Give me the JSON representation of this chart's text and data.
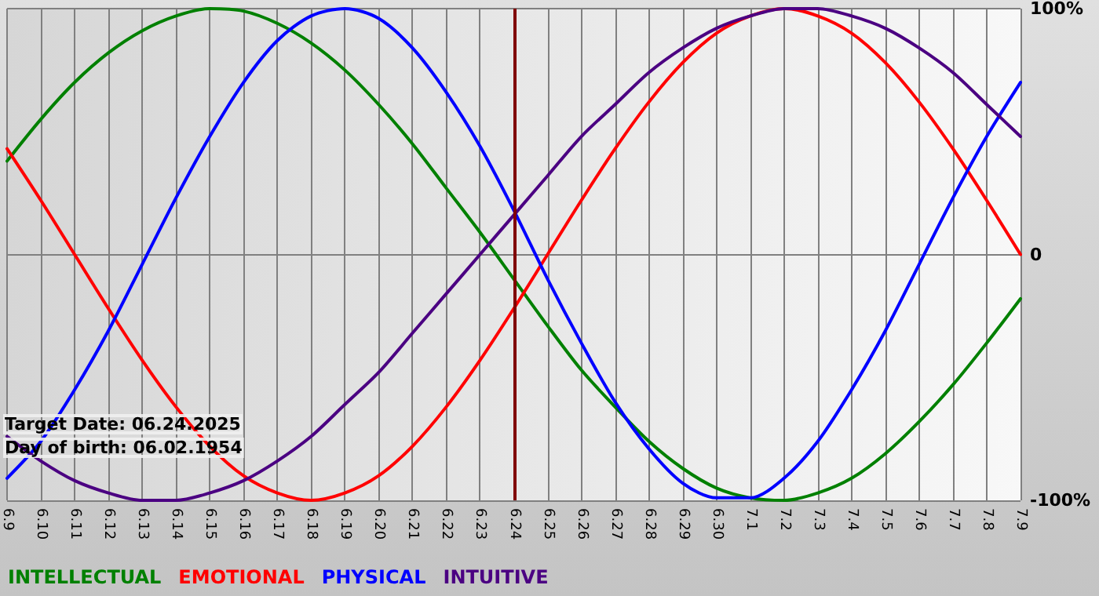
{
  "chart_data": {
    "type": "line",
    "categories": [
      "6.9",
      "6.10",
      "6.11",
      "6.12",
      "6.13",
      "6.14",
      "6.15",
      "6.16",
      "6.17",
      "6.18",
      "6.19",
      "6.20",
      "6.21",
      "6.22",
      "6.23",
      "6.24",
      "6.25",
      "6.26",
      "6.27",
      "6.28",
      "6.29",
      "6.30",
      "7.1",
      "7.2",
      "7.3",
      "7.4",
      "7.5",
      "7.6",
      "7.7",
      "7.8",
      "7.9"
    ],
    "series": [
      {
        "name": "INTELLECTUAL",
        "color": "#008000",
        "values": [
          38,
          55,
          70,
          82,
          91,
          97,
          100,
          99,
          94,
          86,
          75,
          61,
          45,
          27,
          9,
          -10,
          -29,
          -47,
          -62,
          -76,
          -87,
          -95,
          -99,
          -100,
          -97,
          -91,
          -81,
          -68,
          -53,
          -36,
          -18
        ]
      },
      {
        "name": "EMOTIONAL",
        "color": "#ff0000",
        "values": [
          43,
          22,
          0,
          -22,
          -43,
          -62,
          -78,
          -90,
          -97,
          -100,
          -97,
          -90,
          -78,
          -62,
          -43,
          -22,
          0,
          22,
          43,
          62,
          78,
          90,
          97,
          100,
          97,
          90,
          78,
          62,
          43,
          22,
          0
        ]
      },
      {
        "name": "PHYSICAL",
        "color": "#0000ff",
        "values": [
          -91,
          -76,
          -55,
          -31,
          -4,
          23,
          48,
          70,
          87,
          97,
          100,
          96,
          84,
          66,
          44,
          18,
          -10,
          -36,
          -60,
          -79,
          -93,
          -99,
          -99,
          -91,
          -76,
          -55,
          -31,
          -4,
          23,
          48,
          70
        ]
      },
      {
        "name": "INTUITIVE",
        "color": "#4b0082",
        "values": [
          -74,
          -84,
          -92,
          -97,
          -100,
          -100,
          -97,
          -92,
          -84,
          -74,
          -61,
          -48,
          -32,
          -16,
          0,
          16,
          32,
          48,
          61,
          74,
          84,
          92,
          97,
          100,
          100,
          97,
          92,
          84,
          74,
          61,
          48
        ]
      }
    ],
    "ylim": [
      -100,
      100
    ],
    "yticks": [
      {
        "value": 100,
        "label": "100%"
      },
      {
        "value": 0,
        "label": "0"
      },
      {
        "value": -100,
        "label": "-100%"
      }
    ],
    "grid": true,
    "legend": "bottom left",
    "marker": "none",
    "line_style": "solid",
    "ref_lines": [
      {
        "axis": "x",
        "value": "6.24",
        "color": "#800000"
      }
    ],
    "annotations": [
      "Target Date: 06.24.2025",
      "Day of birth: 06.02.1954"
    ]
  }
}
